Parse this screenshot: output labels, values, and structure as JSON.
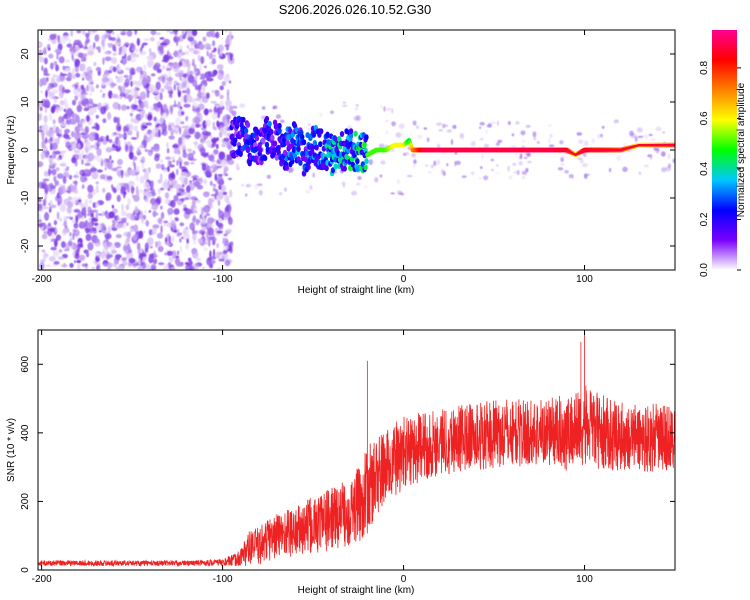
{
  "title": "S206.2026.026.10.52.G30",
  "chart_data": [
    {
      "type": "heatmap",
      "name": "spectrogram",
      "xlabel": "Height of straight line (km)",
      "ylabel": "Frequency (Hz)",
      "xlim": [
        -202,
        150
      ],
      "ylim": [
        -25,
        25
      ],
      "xticks": [
        -200,
        -100,
        0,
        100
      ],
      "yticks": [
        -20,
        -10,
        0,
        10,
        20
      ],
      "colorbar": {
        "label": "Normalized spectral amplitude",
        "range": [
          0,
          0.95
        ],
        "ticks": [
          "0.0",
          "0.2",
          "0.4",
          "0.6",
          "0.8"
        ],
        "tick_values": [
          0,
          0.2,
          0.4,
          0.6,
          0.8
        ],
        "colors": [
          "#ffffff",
          "#7a00ff",
          "#0000ff",
          "#00c8ff",
          "#00ff00",
          "#ffff00",
          "#ff8000",
          "#ff0000",
          "#ff0090"
        ]
      },
      "signal_track": {
        "description": "frequency of strongest spectral component vs height",
        "x": [
          -95,
          -90,
          -85,
          -80,
          -75,
          -70,
          -65,
          -60,
          -55,
          -50,
          -45,
          -40,
          -35,
          -30,
          -25,
          -20,
          -15,
          -10,
          -5,
          0,
          3,
          5,
          10,
          15,
          20,
          40,
          60,
          80,
          90,
          95,
          100,
          105,
          110,
          120,
          130,
          140,
          150
        ],
        "y": [
          2,
          3,
          1,
          0,
          3,
          2,
          0,
          2,
          -1,
          1,
          0,
          -1,
          0,
          0,
          0,
          -1,
          0,
          0,
          1,
          1,
          2,
          0,
          0,
          0,
          0,
          0,
          0,
          0,
          0,
          -1,
          0,
          0,
          0,
          0,
          1,
          1,
          1
        ],
        "amplitude": [
          0.2,
          0.25,
          0.3,
          0.2,
          0.3,
          0.25,
          0.3,
          0.35,
          0.3,
          0.35,
          0.35,
          0.4,
          0.45,
          0.45,
          0.5,
          0.5,
          0.5,
          0.5,
          0.6,
          0.6,
          0.45,
          0.7,
          0.85,
          0.9,
          0.9,
          0.9,
          0.9,
          0.9,
          0.85,
          0.6,
          0.85,
          0.8,
          0.8,
          0.75,
          0.6,
          0.65,
          0.7
        ]
      },
      "noise_region": {
        "x_range": [
          -202,
          -95
        ],
        "y_range": [
          -25,
          25
        ],
        "amplitude_range": [
          0.0,
          0.15
        ]
      }
    },
    {
      "type": "line",
      "name": "snr",
      "xlabel": "Height of straight line (km)",
      "ylabel": "SNR (10 * v/v)",
      "xlim": [
        -202,
        150
      ],
      "ylim": [
        0,
        700
      ],
      "xticks": [
        -200,
        -100,
        0,
        100
      ],
      "yticks": [
        0,
        200,
        400,
        600
      ],
      "series": [
        {
          "name": "SNR",
          "color": "#ee2222",
          "x": [
            -202,
            -180,
            -160,
            -140,
            -120,
            -100,
            -92,
            -88,
            -85,
            -80,
            -75,
            -70,
            -65,
            -60,
            -55,
            -50,
            -45,
            -40,
            -35,
            -30,
            -25,
            -22,
            -20,
            -15,
            -10,
            -5,
            0,
            10,
            20,
            30,
            40,
            50,
            60,
            70,
            80,
            90,
            100,
            110,
            120,
            130,
            140,
            150
          ],
          "y": [
            20,
            20,
            20,
            20,
            20,
            22,
            30,
            50,
            65,
            70,
            90,
            100,
            110,
            110,
            120,
            130,
            140,
            150,
            160,
            170,
            190,
            210,
            230,
            270,
            300,
            320,
            340,
            360,
            375,
            385,
            390,
            395,
            400,
            400,
            405,
            400,
            420,
            400,
            390,
            385,
            385,
            385
          ],
          "spread": [
            8,
            8,
            8,
            8,
            8,
            10,
            20,
            40,
            50,
            55,
            65,
            70,
            70,
            75,
            80,
            85,
            90,
            90,
            95,
            100,
            110,
            120,
            130,
            120,
            110,
            110,
            110,
            100,
            100,
            100,
            100,
            100,
            100,
            100,
            100,
            110,
            120,
            110,
            100,
            100,
            100,
            100
          ]
        }
      ],
      "notable_peaks": [
        {
          "x": -20,
          "y": 610
        },
        {
          "x": 100,
          "y": 700
        },
        {
          "x": 98,
          "y": 665
        }
      ]
    }
  ]
}
